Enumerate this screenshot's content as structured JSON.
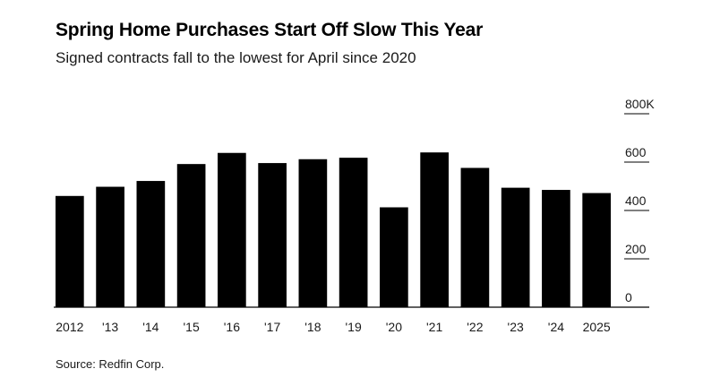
{
  "title": "Spring Home Purchases Start Off Slow This Year",
  "subtitle": "Signed contracts fall to the lowest for April since 2020",
  "source": "Source: Redfin Corp.",
  "colors": {
    "bar": "#000000",
    "axis": "#000000",
    "text": "#1a1a1a"
  },
  "chart_data": {
    "type": "bar",
    "categories": [
      "2012",
      "'13",
      "'14",
      "'15",
      "'16",
      "'17",
      "'18",
      "'19",
      "'20",
      "'21",
      "'22",
      "'23",
      "'24",
      "2025"
    ],
    "values": [
      460,
      498,
      522,
      592,
      638,
      596,
      612,
      618,
      413,
      640,
      576,
      494,
      485,
      472
    ],
    "xlabel": "",
    "ylabel": "",
    "ylim": [
      0,
      800
    ],
    "y_ticks": [
      {
        "value": 0,
        "label": "0"
      },
      {
        "value": 200,
        "label": "200"
      },
      {
        "value": 400,
        "label": "400"
      },
      {
        "value": 600,
        "label": "600"
      },
      {
        "value": 800,
        "label": "800K"
      }
    ],
    "y_axis_side": "right",
    "grid": false
  }
}
